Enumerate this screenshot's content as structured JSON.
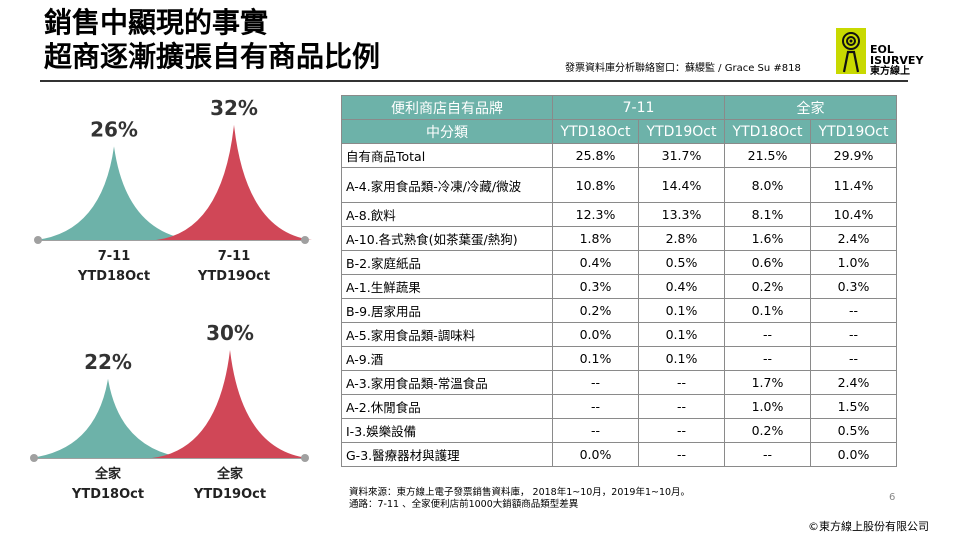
{
  "title": {
    "line1": "銷售中顯現的事實",
    "line2": "超商逐漸擴張自有商品比例"
  },
  "contact": "發票資料庫分析聯絡窗口：蘇纓監 / Grace Su  #818",
  "logo": {
    "line1": "EOL",
    "line2": "ISURVEY",
    "line3": "東方線上"
  },
  "colors": {
    "teal": "#6db2a9",
    "red": "#d04757",
    "axis": "#a0a0a0"
  },
  "chart_data": [
    {
      "type": "area",
      "title": "",
      "categories": [
        "7-11 YTD18Oct",
        "7-11 YTD19Oct"
      ],
      "labels": [
        [
          "7-11",
          "YTD18Oct"
        ],
        [
          "7-11",
          "YTD19Oct"
        ]
      ],
      "values": [
        26,
        32
      ],
      "value_labels": [
        "26%",
        "32%"
      ],
      "colors": [
        "#6db2a9",
        "#d04757"
      ]
    },
    {
      "type": "area",
      "title": "",
      "categories": [
        "全家 YTD18Oct",
        "全家 YTD19Oct"
      ],
      "labels": [
        [
          "全家",
          "YTD18Oct"
        ],
        [
          "全家",
          "YTD19Oct"
        ]
      ],
      "values": [
        22,
        30
      ],
      "value_labels": [
        "22%",
        "30%"
      ],
      "colors": [
        "#6db2a9",
        "#d04757"
      ]
    },
    {
      "type": "table",
      "header1": {
        "label": "便利商店自有品牌",
        "groups": [
          "7-11",
          "全家"
        ]
      },
      "header2": {
        "label": "中分類",
        "columns": [
          "YTD18Oct",
          "YTD19Oct",
          "YTD18Oct",
          "YTD19Oct"
        ]
      },
      "rows": [
        {
          "category": "自有商品Total",
          "values": [
            "25.8%",
            "31.7%",
            "21.5%",
            "29.9%"
          ]
        },
        {
          "category": "A-4.家用食品類-冷凍/冷藏/微波",
          "values": [
            "10.8%",
            "14.4%",
            "8.0%",
            "11.4%"
          ]
        },
        {
          "category": "A-8.飲料",
          "values": [
            "12.3%",
            "13.3%",
            "8.1%",
            "10.4%"
          ]
        },
        {
          "category": "A-10.各式熟食(如茶葉蛋/熱狗)",
          "values": [
            "1.8%",
            "2.8%",
            "1.6%",
            "2.4%"
          ]
        },
        {
          "category": "B-2.家庭紙品",
          "values": [
            "0.4%",
            "0.5%",
            "0.6%",
            "1.0%"
          ]
        },
        {
          "category": "A-1.生鮮蔬果",
          "values": [
            "0.3%",
            "0.4%",
            "0.2%",
            "0.3%"
          ]
        },
        {
          "category": "B-9.居家用品",
          "values": [
            "0.2%",
            "0.1%",
            "0.1%",
            "--"
          ]
        },
        {
          "category": "A-5.家用食品類-調味料",
          "values": [
            "0.0%",
            "0.1%",
            "--",
            "--"
          ]
        },
        {
          "category": "A-9.酒",
          "values": [
            "0.1%",
            "0.1%",
            "--",
            "--"
          ]
        },
        {
          "category": "A-3.家用食品類-常溫食品",
          "values": [
            "--",
            "--",
            "1.7%",
            "2.4%"
          ]
        },
        {
          "category": "A-2.休閒食品",
          "values": [
            "--",
            "--",
            "1.0%",
            "1.5%"
          ]
        },
        {
          "category": "I-3.娛樂設備",
          "values": [
            "--",
            "--",
            "0.2%",
            "0.5%"
          ]
        },
        {
          "category": "G-3.醫療器材與護理",
          "values": [
            "0.0%",
            "--",
            "--",
            "0.0%"
          ]
        }
      ]
    }
  ],
  "source": {
    "line1": "資料來源：東方線上電子發票銷售資料庫， 2018年1~10月，2019年1~10月。",
    "line2": "通路：7-11 、全家便利店前1000大銷額商品類型差異"
  },
  "page_number": "6",
  "copyright": "©東方線上股份有限公司"
}
